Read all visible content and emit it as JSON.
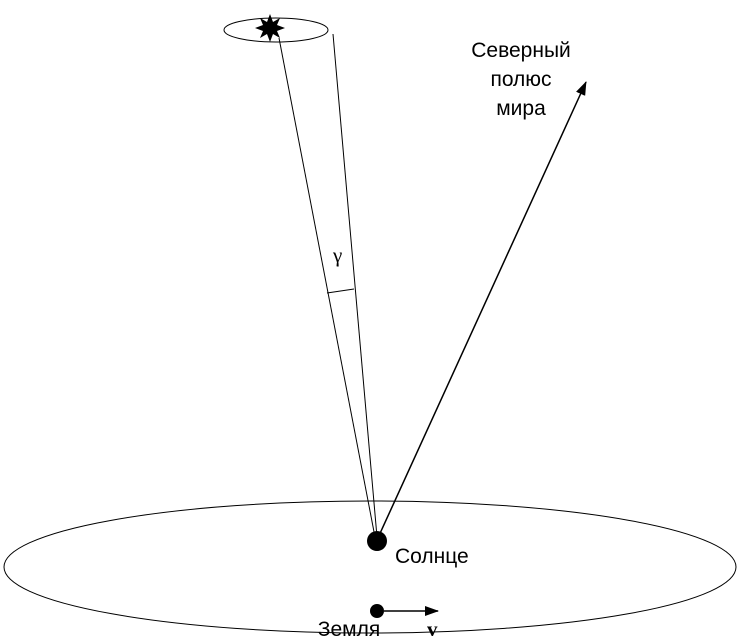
{
  "labels": {
    "north_pole": [
      "Северный",
      "полюс",
      "мира"
    ],
    "gamma": "γ",
    "sun": "Солнце",
    "earth": "Земля",
    "velocity": "v"
  }
}
